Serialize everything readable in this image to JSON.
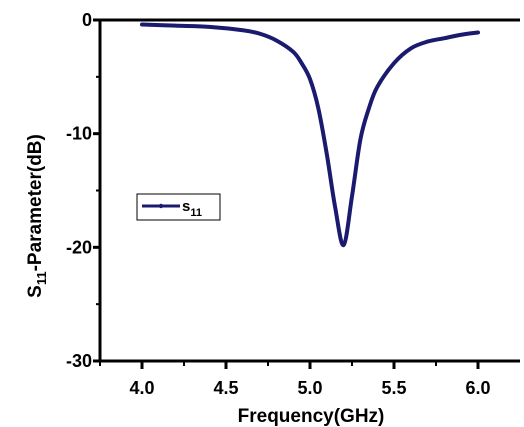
{
  "chart_data": {
    "type": "line",
    "xlabel": "Frequency(GHz)",
    "ylabel_main": "S",
    "ylabel_sub": "11",
    "ylabel_rest": "-Parameter(dB)",
    "xlim": [
      3.75,
      6.25
    ],
    "ylim": [
      -30,
      0
    ],
    "xticks": [
      4.0,
      4.5,
      5.0,
      5.5,
      6.0
    ],
    "xtick_labels": [
      "4.0",
      "4.5",
      "5.0",
      "5.5",
      "6.0"
    ],
    "yticks": [
      0,
      -10,
      -20,
      -30
    ],
    "ytick_labels": [
      "0",
      "-10",
      "-20",
      "-30"
    ],
    "grid": false,
    "legend_placement": "middle-left",
    "series": [
      {
        "name_main": "s",
        "name_sub": "11",
        "color": "#1a1a6e",
        "x": [
          4.0,
          4.2,
          4.4,
          4.6,
          4.7,
          4.8,
          4.9,
          4.95,
          5.0,
          5.05,
          5.1,
          5.15,
          5.2,
          5.25,
          5.3,
          5.35,
          5.4,
          5.5,
          5.6,
          5.7,
          5.8,
          5.9,
          6.0
        ],
        "y": [
          -0.4,
          -0.5,
          -0.6,
          -0.9,
          -1.2,
          -1.8,
          -2.8,
          -3.8,
          -5.2,
          -7.8,
          -11.8,
          -16.5,
          -19.8,
          -15.5,
          -10.5,
          -7.8,
          -5.9,
          -3.8,
          -2.5,
          -1.9,
          -1.6,
          -1.3,
          -1.1
        ]
      }
    ]
  }
}
